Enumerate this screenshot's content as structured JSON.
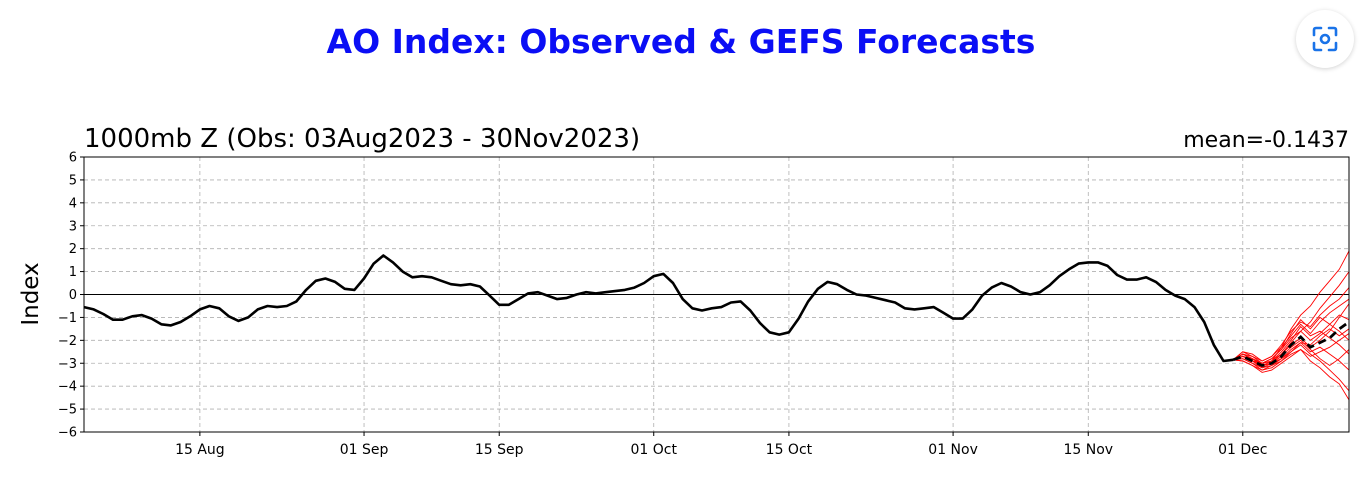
{
  "header": {
    "title": "AO Index: Observed & GEFS Forecasts"
  },
  "toolbar": {
    "scan_icon": "visual-search-icon"
  },
  "colors": {
    "title": "#0a0ef5",
    "observed": "#000000",
    "ensemble": "#ff0000",
    "grid": "#b0b0b0"
  },
  "chart_data": {
    "type": "line",
    "title": "1000mb Z (Obs: 03Aug2023 - 30Nov2023)",
    "annotation": "mean=-0.1437",
    "ylabel": "Index",
    "xlabel": "",
    "ylim": [
      -6,
      6
    ],
    "yticks": [
      -6,
      -5,
      -4,
      -3,
      -2,
      -1,
      0,
      1,
      2,
      3,
      4,
      5,
      6
    ],
    "xlim": [
      "2023-08-03",
      "2023-12-12"
    ],
    "xticks": [
      {
        "date": "2023-08-15",
        "label": "15 Aug"
      },
      {
        "date": "2023-09-01",
        "label": "01 Sep"
      },
      {
        "date": "2023-09-15",
        "label": "15 Sep"
      },
      {
        "date": "2023-10-01",
        "label": "01 Oct"
      },
      {
        "date": "2023-10-15",
        "label": "15 Oct"
      },
      {
        "date": "2023-11-01",
        "label": "01 Nov"
      },
      {
        "date": "2023-11-15",
        "label": "15 Nov"
      },
      {
        "date": "2023-12-01",
        "label": "01 Dec"
      }
    ],
    "grid": true,
    "series": [
      {
        "kind": "observed",
        "x": [
          "2023-08-03",
          "2023-08-04",
          "2023-08-05",
          "2023-08-06",
          "2023-08-07",
          "2023-08-08",
          "2023-08-09",
          "2023-08-10",
          "2023-08-11",
          "2023-08-12",
          "2023-08-13",
          "2023-08-14",
          "2023-08-15",
          "2023-08-16",
          "2023-08-17",
          "2023-08-18",
          "2023-08-19",
          "2023-08-20",
          "2023-08-21",
          "2023-08-22",
          "2023-08-23",
          "2023-08-24",
          "2023-08-25",
          "2023-08-26",
          "2023-08-27",
          "2023-08-28",
          "2023-08-29",
          "2023-08-30",
          "2023-08-31",
          "2023-09-01",
          "2023-09-02",
          "2023-09-03",
          "2023-09-04",
          "2023-09-05",
          "2023-09-06",
          "2023-09-07",
          "2023-09-08",
          "2023-09-09",
          "2023-09-10",
          "2023-09-11",
          "2023-09-12",
          "2023-09-13",
          "2023-09-14",
          "2023-09-15",
          "2023-09-16",
          "2023-09-17",
          "2023-09-18",
          "2023-09-19",
          "2023-09-20",
          "2023-09-21",
          "2023-09-22",
          "2023-09-23",
          "2023-09-24",
          "2023-09-25",
          "2023-09-26",
          "2023-09-27",
          "2023-09-28",
          "2023-09-29",
          "2023-09-30",
          "2023-10-01",
          "2023-10-02",
          "2023-10-03",
          "2023-10-04",
          "2023-10-05",
          "2023-10-06",
          "2023-10-07",
          "2023-10-08",
          "2023-10-09",
          "2023-10-10",
          "2023-10-11",
          "2023-10-12",
          "2023-10-13",
          "2023-10-14",
          "2023-10-15",
          "2023-10-16",
          "2023-10-17",
          "2023-10-18",
          "2023-10-19",
          "2023-10-20",
          "2023-10-21",
          "2023-10-22",
          "2023-10-23",
          "2023-10-24",
          "2023-10-25",
          "2023-10-26",
          "2023-10-27",
          "2023-10-28",
          "2023-10-29",
          "2023-10-30",
          "2023-10-31",
          "2023-11-01",
          "2023-11-02",
          "2023-11-03",
          "2023-11-04",
          "2023-11-05",
          "2023-11-06",
          "2023-11-07",
          "2023-11-08",
          "2023-11-09",
          "2023-11-10",
          "2023-11-11",
          "2023-11-12",
          "2023-11-13",
          "2023-11-14",
          "2023-11-15",
          "2023-11-16",
          "2023-11-17",
          "2023-11-18",
          "2023-11-19",
          "2023-11-20",
          "2023-11-21",
          "2023-11-22",
          "2023-11-23",
          "2023-11-24",
          "2023-11-25",
          "2023-11-26",
          "2023-11-27",
          "2023-11-28",
          "2023-11-29",
          "2023-11-30"
        ],
        "y": [
          -0.55,
          -0.65,
          -0.85,
          -1.1,
          -1.1,
          -0.95,
          -0.9,
          -1.05,
          -1.3,
          -1.35,
          -1.2,
          -0.95,
          -0.65,
          -0.5,
          -0.6,
          -0.95,
          -1.15,
          -1.0,
          -0.65,
          -0.5,
          -0.55,
          -0.5,
          -0.3,
          0.2,
          0.6,
          0.7,
          0.55,
          0.25,
          0.2,
          0.7,
          1.35,
          1.7,
          1.4,
          1.0,
          0.75,
          0.8,
          0.75,
          0.6,
          0.45,
          0.4,
          0.45,
          0.35,
          -0.05,
          -0.45,
          -0.45,
          -0.2,
          0.05,
          0.1,
          -0.05,
          -0.2,
          -0.15,
          0.0,
          0.1,
          0.05,
          0.1,
          0.15,
          0.2,
          0.3,
          0.5,
          0.8,
          0.9,
          0.5,
          -0.2,
          -0.6,
          -0.7,
          -0.6,
          -0.55,
          -0.35,
          -0.3,
          -0.7,
          -1.25,
          -1.65,
          -1.75,
          -1.65,
          -1.05,
          -0.3,
          0.25,
          0.55,
          0.45,
          0.2,
          0.0,
          -0.05,
          -0.15,
          -0.25,
          -0.35,
          -0.6,
          -0.65,
          -0.6,
          -0.55,
          -0.8,
          -1.05,
          -1.05,
          -0.65,
          -0.05,
          0.3,
          0.5,
          0.35,
          0.1,
          0.0,
          0.1,
          0.4,
          0.8,
          1.1,
          1.35,
          1.4,
          1.4,
          1.25,
          0.85,
          0.65,
          0.65,
          0.75,
          0.55,
          0.2,
          -0.05,
          -0.2,
          -0.55,
          -1.2,
          -2.2,
          -2.9,
          -2.85
        ]
      },
      {
        "kind": "ensemble-mean",
        "x": [
          "2023-11-30",
          "2023-12-01",
          "2023-12-02",
          "2023-12-03",
          "2023-12-04",
          "2023-12-05",
          "2023-12-06",
          "2023-12-07",
          "2023-12-08",
          "2023-12-09",
          "2023-12-10",
          "2023-12-11",
          "2023-12-12"
        ],
        "y": [
          -2.85,
          -2.7,
          -2.9,
          -3.1,
          -3.0,
          -2.7,
          -2.2,
          -1.85,
          -2.3,
          -2.1,
          -1.9,
          -1.5,
          -1.2
        ]
      },
      {
        "kind": "ensemble-members",
        "x": [
          "2023-11-30",
          "2023-12-01",
          "2023-12-02",
          "2023-12-03",
          "2023-12-04",
          "2023-12-05",
          "2023-12-06",
          "2023-12-07",
          "2023-12-08",
          "2023-12-09",
          "2023-12-10",
          "2023-12-11",
          "2023-12-12"
        ],
        "members": [
          [
            -2.85,
            -2.6,
            -2.8,
            -3.0,
            -2.9,
            -2.3,
            -1.5,
            -0.9,
            -0.5,
            0.1,
            0.6,
            1.1,
            1.9
          ],
          [
            -2.85,
            -2.7,
            -2.9,
            -3.2,
            -3.0,
            -2.6,
            -2.1,
            -1.6,
            -1.2,
            -0.6,
            -0.1,
            0.4,
            1.0
          ],
          [
            -2.85,
            -2.5,
            -2.7,
            -2.9,
            -2.7,
            -2.2,
            -1.6,
            -1.2,
            -1.4,
            -0.9,
            -0.5,
            -0.2,
            0.3
          ],
          [
            -2.85,
            -2.8,
            -3.0,
            -3.3,
            -3.1,
            -2.8,
            -2.5,
            -2.2,
            -2.6,
            -2.9,
            -3.3,
            -3.7,
            -4.2
          ],
          [
            -2.85,
            -2.9,
            -3.1,
            -3.4,
            -3.3,
            -3.0,
            -2.7,
            -2.4,
            -2.9,
            -3.2,
            -3.6,
            -3.9,
            -4.6
          ],
          [
            -2.85,
            -2.6,
            -2.8,
            -3.1,
            -2.9,
            -2.5,
            -2.0,
            -1.4,
            -1.8,
            -1.6,
            -1.9,
            -2.2,
            -2.6
          ],
          [
            -2.85,
            -2.7,
            -2.9,
            -3.0,
            -2.9,
            -2.6,
            -2.2,
            -1.9,
            -2.3,
            -2.0,
            -1.6,
            -1.0,
            -0.4
          ],
          [
            -2.85,
            -2.6,
            -2.7,
            -3.0,
            -2.8,
            -2.4,
            -1.9,
            -1.6,
            -2.0,
            -1.7,
            -1.3,
            -1.6,
            -2.0
          ],
          [
            -2.85,
            -2.8,
            -3.0,
            -3.2,
            -3.1,
            -2.9,
            -2.6,
            -2.4,
            -2.7,
            -2.5,
            -2.3,
            -2.0,
            -1.7
          ],
          [
            -2.85,
            -2.7,
            -2.8,
            -3.1,
            -3.0,
            -2.7,
            -2.3,
            -2.0,
            -2.4,
            -2.8,
            -3.1,
            -2.8,
            -2.4
          ],
          [
            -2.85,
            -2.5,
            -2.6,
            -2.9,
            -2.7,
            -2.3,
            -1.8,
            -1.3,
            -1.7,
            -1.2,
            -0.8,
            -0.5,
            -0.2
          ],
          [
            -2.85,
            -2.9,
            -3.1,
            -3.3,
            -3.2,
            -2.9,
            -2.5,
            -2.1,
            -2.5,
            -2.3,
            -2.6,
            -2.9,
            -3.3
          ],
          [
            -2.85,
            -2.6,
            -2.8,
            -3.0,
            -2.8,
            -2.4,
            -1.7,
            -1.1,
            -1.5,
            -1.0,
            -1.3,
            -0.9,
            -1.1
          ],
          [
            -2.85,
            -2.7,
            -2.9,
            -3.1,
            -3.0,
            -2.8,
            -2.4,
            -2.1,
            -2.2,
            -1.8,
            -1.5,
            -1.8,
            -1.5
          ]
        ]
      }
    ]
  }
}
